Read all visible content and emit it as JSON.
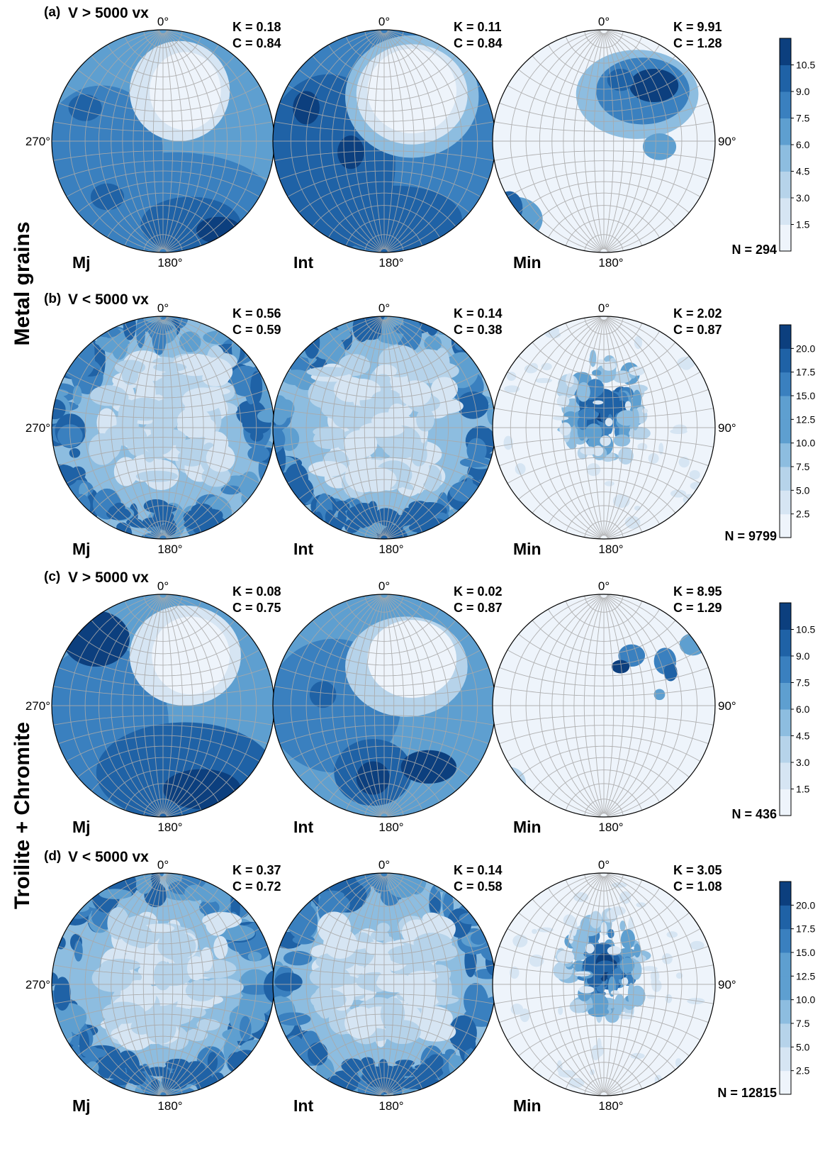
{
  "figure": {
    "group_labels": [
      "Metal grains",
      "Troilite + Chromite"
    ]
  },
  "chart_data": [
    {
      "type": "heatmap",
      "panel": "(a)",
      "condition": "V > 5000 vx",
      "group": "Metal grains",
      "N": "N = 294",
      "colorbar_ticks": [
        "1.5",
        "3.0",
        "4.5",
        "6.0",
        "7.5",
        "9.0",
        "10.5"
      ],
      "stereonets": [
        {
          "axis": "Mj",
          "K": "K = 0.18",
          "C": "C = 0.84"
        },
        {
          "axis": "Int",
          "K": "K = 0.11",
          "C": "C = 0.84"
        },
        {
          "axis": "Min",
          "K": "K = 9.91",
          "C": "C = 1.28"
        }
      ]
    },
    {
      "type": "heatmap",
      "panel": "(b)",
      "condition": "V < 5000 vx",
      "group": "Metal grains",
      "N": "N = 9799",
      "colorbar_ticks": [
        "2.5",
        "5.0",
        "7.5",
        "10.0",
        "12.5",
        "15.0",
        "17.5",
        "20.0"
      ],
      "stereonets": [
        {
          "axis": "Mj",
          "K": "K = 0.56",
          "C": "C = 0.59"
        },
        {
          "axis": "Int",
          "K": "K = 0.14",
          "C": "C = 0.38"
        },
        {
          "axis": "Min",
          "K": "K = 2.02",
          "C": "C = 0.87"
        }
      ]
    },
    {
      "type": "heatmap",
      "panel": "(c)",
      "condition": "V > 5000 vx",
      "group": "Troilite + Chromite",
      "N": "N = 436",
      "colorbar_ticks": [
        "1.5",
        "3.0",
        "4.5",
        "6.0",
        "7.5",
        "9.0",
        "10.5"
      ],
      "stereonets": [
        {
          "axis": "Mj",
          "K": "K = 0.08",
          "C": "C = 0.75"
        },
        {
          "axis": "Int",
          "K": "K = 0.02",
          "C": "C = 0.87"
        },
        {
          "axis": "Min",
          "K": "K = 8.95",
          "C": "C = 1.29"
        }
      ]
    },
    {
      "type": "heatmap",
      "panel": "(d)",
      "condition": "V < 5000 vx",
      "group": "Troilite + Chromite",
      "N": "N = 12815",
      "colorbar_ticks": [
        "2.5",
        "5.0",
        "7.5",
        "10.0",
        "12.5",
        "15.0",
        "17.5",
        "20.0"
      ],
      "stereonets": [
        {
          "axis": "Mj",
          "K": "K = 0.37",
          "C": "C = 0.72"
        },
        {
          "axis": "Int",
          "K": "K = 0.14",
          "C": "C = 0.58"
        },
        {
          "axis": "Min",
          "K": "K = 3.05",
          "C": "C = 1.08"
        }
      ]
    }
  ],
  "direction_labels": {
    "north": "0°",
    "east": "90°",
    "south": "180°",
    "west": "270°"
  },
  "colors": {
    "ramp": [
      "#eef4fb",
      "#d6e5f3",
      "#b6d3ea",
      "#8dbde0",
      "#5e9fd0",
      "#3a80bf",
      "#1f62a6",
      "#0c3f7e"
    ],
    "grid": "#a9a9a9",
    "outline": "#000000"
  }
}
